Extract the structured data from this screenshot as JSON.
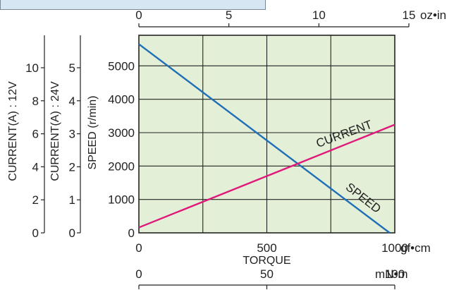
{
  "chart_data": {
    "type": "line",
    "x": {
      "label": "TORQUE",
      "range": [
        0,
        1000
      ],
      "ticks": [
        0,
        500,
        1000
      ],
      "tick_labels": [
        "0",
        "500",
        "1000"
      ],
      "unit": "gf•cm"
    },
    "x_secondary_top": {
      "range": [
        0,
        15
      ],
      "ticks": [
        0,
        5,
        10,
        15
      ],
      "tick_labels": [
        "0",
        "5",
        "10",
        "15"
      ],
      "unit": "oz•in"
    },
    "x_secondary_bottom": {
      "range": [
        0,
        100
      ],
      "ticks": [
        0,
        50,
        100
      ],
      "tick_labels": [
        "0",
        "50",
        "100"
      ],
      "unit": "mN•m"
    },
    "y_speed": {
      "label": "SPEED (r/min)",
      "range": [
        0,
        6000
      ],
      "ticks": [
        0,
        1000,
        2000,
        3000,
        4000,
        5000
      ],
      "tick_labels": [
        "0",
        "1000",
        "2000",
        "3000",
        "4000",
        "5000"
      ]
    },
    "y_current_24v": {
      "label": "CURRENT(A) : 24V",
      "ticks": [
        0,
        1,
        2,
        3,
        4,
        5
      ],
      "tick_labels": [
        "0",
        "1",
        "2",
        "3",
        "4",
        "5"
      ]
    },
    "y_current_12v": {
      "label": "CURRENT(A) : 12V",
      "ticks": [
        0,
        2,
        4,
        6,
        8,
        10
      ],
      "tick_labels": [
        "0",
        "2",
        "4",
        "6",
        "8",
        "10"
      ]
    },
    "grid": true,
    "series": [
      {
        "name": "SPEED",
        "color": "#1f6fb8",
        "points": [
          {
            "x": 0,
            "y": 5650
          },
          {
            "x": 980,
            "y": 0
          }
        ]
      },
      {
        "name": "CURRENT",
        "color": "#e0187a",
        "points": [
          {
            "x": 0,
            "y": 160
          },
          {
            "x": 1000,
            "y": 3240
          }
        ]
      }
    ],
    "plot_background": "#e3efd6"
  }
}
